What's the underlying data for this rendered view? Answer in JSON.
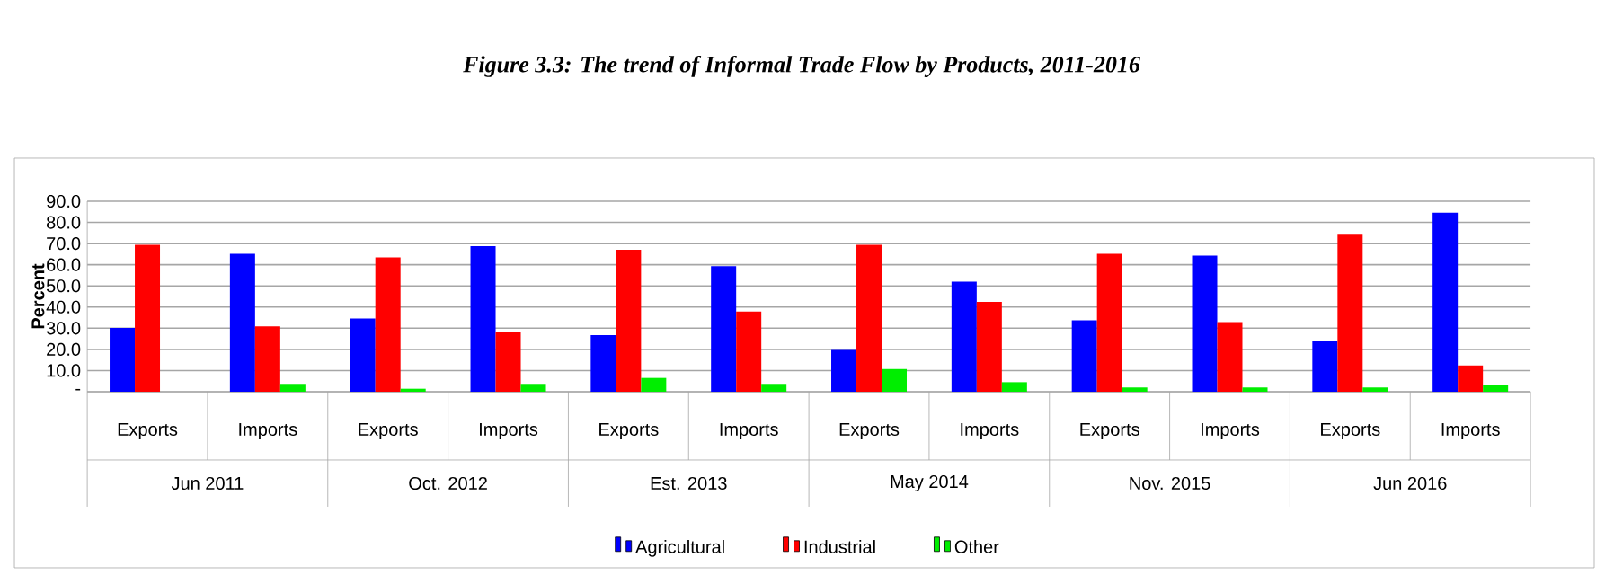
{
  "chart_data": {
    "type": "bar",
    "title": "Figure 3.3: The trend of Informal Trade Flow by Products, 2011-2016",
    "ylabel": "Percent",
    "categories": [
      "Exports",
      "Imports",
      "Exports",
      "Imports",
      "Exports",
      "Imports",
      "Exports",
      "Imports",
      "Exports",
      "Imports",
      "Exports",
      "Imports"
    ],
    "series": [
      {
        "name": "Agricultural",
        "color": "#0000ff",
        "values": [
          30.1,
          65.2,
          34.6,
          68.8,
          26.7,
          59.3,
          19.7,
          52.0,
          33.7,
          64.3,
          23.9,
          84.6
        ]
      },
      {
        "name": "Industrial",
        "color": "#ff0000",
        "values": [
          69.4,
          30.9,
          63.5,
          28.4,
          67.1,
          37.9,
          69.4,
          42.4,
          65.2,
          32.9,
          74.2,
          12.4
        ]
      },
      {
        "name": "Other",
        "color": "#00ee00",
        "values": [
          0.0,
          3.7,
          1.4,
          3.7,
          6.5,
          3.7,
          10.7,
          4.5,
          2.0,
          2.0,
          2.0,
          3.1
        ]
      }
    ],
    "ylim": [
      0,
      90
    ],
    "yticks": [
      {
        "value": 0,
        "label": "-"
      },
      {
        "value": 10,
        "label": "10.0"
      },
      {
        "value": 20,
        "label": "20.0"
      },
      {
        "value": 30,
        "label": "30.0"
      },
      {
        "value": 40,
        "label": "40.0"
      },
      {
        "value": 50,
        "label": "50.0"
      },
      {
        "value": 60,
        "label": "60.0"
      },
      {
        "value": 70,
        "label": "70.0"
      },
      {
        "value": 80,
        "label": "80.0"
      },
      {
        "value": 90,
        "label": "90.0"
      }
    ],
    "grid": "y",
    "legend": "bottom",
    "annotations": [
      "Jun 2011",
      "Oct. 2012",
      "Est. 2013",
      "May 2014",
      "Nov. 2015",
      "Jun 2016"
    ]
  }
}
